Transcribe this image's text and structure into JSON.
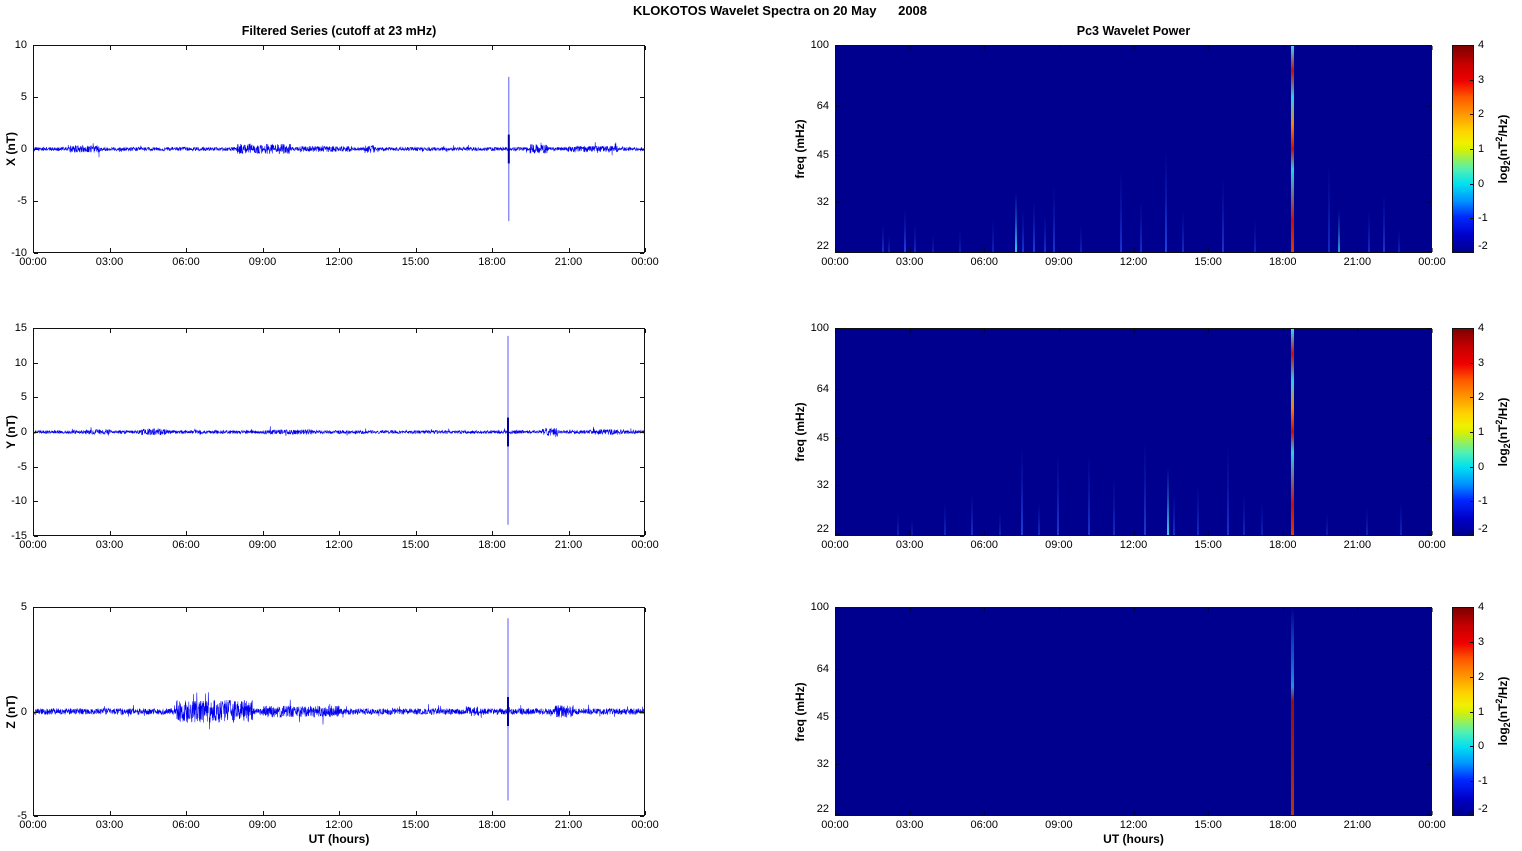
{
  "figure_title": "KLOKOTOS Wavelet Spectra on 20 May      2008",
  "left_column_title": "Filtered Series (cutoff at 23 mHz)",
  "right_column_title": "Pc3 Wavelet Power",
  "xlabel": "UT (hours)",
  "series_color": "#0000ee",
  "spectrogram_bg": "#00008f",
  "x_axis": {
    "range_hours": [
      0,
      24
    ],
    "tick_hours": [
      0,
      3,
      6,
      9,
      12,
      15,
      18,
      21,
      24
    ],
    "tick_labels": [
      "00:00",
      "03:00",
      "06:00",
      "09:00",
      "12:00",
      "15:00",
      "18:00",
      "21:00",
      "00:00"
    ]
  },
  "colorbar": {
    "tick_labels": [
      "4",
      "3",
      "2",
      "1",
      "0",
      "-1",
      "-2"
    ],
    "value_range": [
      -2,
      4
    ],
    "label_parts": {
      "prefix": "log",
      "sub": "2",
      "mid": "(nT",
      "sup": "2",
      "suffix": "/Hz)"
    },
    "gradient_top_to_bottom": [
      [
        0,
        "#7f0000"
      ],
      [
        0.09,
        "#c80000"
      ],
      [
        0.167,
        "#f00000"
      ],
      [
        0.25,
        "#ff5a00"
      ],
      [
        0.333,
        "#ff9600"
      ],
      [
        0.41,
        "#ffd200"
      ],
      [
        0.47,
        "#f0f000"
      ],
      [
        0.5,
        "#d8f000"
      ],
      [
        0.6,
        "#50f0b4"
      ],
      [
        0.667,
        "#00e0f0"
      ],
      [
        0.75,
        "#0096ff"
      ],
      [
        0.833,
        "#0028ff"
      ],
      [
        0.92,
        "#0000c8"
      ],
      [
        1,
        "#00008f"
      ]
    ]
  },
  "main_streak_gradient_bottom_to_top": [
    [
      0,
      "#d24000"
    ],
    [
      0.15,
      "#cc0f00"
    ],
    [
      0.4,
      "#28cfe6"
    ],
    [
      0.5,
      "#cc0f00"
    ],
    [
      0.62,
      "#ef8800"
    ],
    [
      0.75,
      "#28cfe6"
    ],
    [
      0.88,
      "#cc0f00"
    ],
    [
      1,
      "#35d8ee"
    ]
  ],
  "main_streak_z_gradient_bottom_to_top": [
    [
      0,
      "#c83c00"
    ],
    [
      0.45,
      "#b41400"
    ],
    [
      0.55,
      "#aa1000"
    ],
    [
      0.62,
      "#2f9fe0"
    ],
    [
      0.72,
      "#1870d8"
    ],
    [
      0.85,
      "#1040c0"
    ],
    [
      1,
      "#00008f"
    ]
  ],
  "chart_data": [
    {
      "type": "line",
      "position": "left-top",
      "name": "X filtered series",
      "ylabel": "X (nT)",
      "ylim": [
        -10,
        10
      ],
      "yticks": [
        10,
        5,
        0,
        -5,
        -10
      ],
      "x_range_hours": [
        0,
        24
      ],
      "noise_base_nT": 0.18,
      "noise_bursts": [
        {
          "t0": 1.4,
          "t1": 2.6,
          "amp": 0.35
        },
        {
          "t0": 8.0,
          "t1": 10.1,
          "amp": 0.5
        },
        {
          "t0": 10.5,
          "t1": 12.5,
          "amp": 0.3
        },
        {
          "t0": 13.0,
          "t1": 13.4,
          "amp": 0.4
        },
        {
          "t0": 19.5,
          "t1": 20.2,
          "amp": 0.45
        },
        {
          "t0": 21.0,
          "t1": 23.0,
          "amp": 0.3
        }
      ],
      "spikes": [
        {
          "t": 18.68,
          "up": 7,
          "down": -7
        }
      ]
    },
    {
      "type": "line",
      "position": "left-middle",
      "name": "Y filtered series",
      "ylabel": "Y (nT)",
      "ylim": [
        -15,
        15
      ],
      "yticks": [
        15,
        10,
        5,
        0,
        -5,
        -10,
        -15
      ],
      "x_range_hours": [
        0,
        24
      ],
      "noise_base_nT": 0.25,
      "noise_bursts": [
        {
          "t0": 2.0,
          "t1": 3.0,
          "amp": 0.4
        },
        {
          "t0": 4.2,
          "t1": 5.2,
          "amp": 0.45
        },
        {
          "t0": 9.0,
          "t1": 11.0,
          "amp": 0.35
        },
        {
          "t0": 20.0,
          "t1": 20.6,
          "amp": 0.6
        },
        {
          "t0": 22.0,
          "t1": 23.2,
          "amp": 0.4
        }
      ],
      "spikes": [
        {
          "t": 18.65,
          "up": 14,
          "down": -13.5
        }
      ]
    },
    {
      "type": "line",
      "position": "left-bottom",
      "name": "Z filtered series",
      "ylabel": "Z (nT)",
      "ylim": [
        -5,
        5
      ],
      "yticks": [
        5,
        0,
        -5
      ],
      "x_range_hours": [
        0,
        24
      ],
      "noise_base_nT": 0.15,
      "noise_bursts": [
        {
          "t0": 5.6,
          "t1": 8.6,
          "amp": 0.55
        },
        {
          "t0": 9.0,
          "t1": 12.0,
          "amp": 0.28
        },
        {
          "t0": 17.0,
          "t1": 17.5,
          "amp": 0.25
        },
        {
          "t0": 20.5,
          "t1": 21.2,
          "amp": 0.3
        }
      ],
      "spikes": [
        {
          "t": 18.65,
          "up": 4.5,
          "down": -4.3
        }
      ]
    },
    {
      "type": "heatmap",
      "position": "right-top",
      "name": "X wavelet power",
      "ylabel": "freq (mHz)",
      "yscale": "log",
      "ylim_mHz": [
        22,
        100
      ],
      "yticks": [
        100,
        64,
        45,
        32,
        22
      ],
      "value_label": "log2(nT^2/Hz)",
      "value_range": [
        -2,
        4
      ],
      "background_value": -2,
      "streaks": [
        {
          "t": 1.9,
          "fmax": 27,
          "c": "#2e5cff",
          "o": 0.5
        },
        {
          "t": 2.15,
          "fmax": 25,
          "c": "#2e5cff",
          "o": 0.35
        },
        {
          "t": 2.8,
          "fmax": 30,
          "c": "#2e5cff",
          "o": 0.7
        },
        {
          "t": 3.2,
          "fmax": 27,
          "c": "#2e5cff",
          "o": 0.45
        },
        {
          "t": 3.9,
          "fmax": 25,
          "c": "#2e5cff",
          "o": 0.3
        },
        {
          "t": 5.0,
          "fmax": 26,
          "c": "#2e5cff",
          "o": 0.3
        },
        {
          "t": 6.35,
          "fmax": 28,
          "c": "#2e5cff",
          "o": 0.35
        },
        {
          "t": 7.25,
          "fmax": 34,
          "c": "#35d2f0",
          "o": 0.95
        },
        {
          "t": 7.55,
          "fmax": 30,
          "c": "#2e5cff",
          "o": 0.55
        },
        {
          "t": 8.0,
          "fmax": 32,
          "c": "#2e5cff",
          "o": 0.65
        },
        {
          "t": 8.45,
          "fmax": 29,
          "c": "#2e5cff",
          "o": 0.5
        },
        {
          "t": 8.8,
          "fmax": 36,
          "c": "#2e5cff",
          "o": 0.55
        },
        {
          "t": 9.9,
          "fmax": 27,
          "c": "#2e5cff",
          "o": 0.35
        },
        {
          "t": 11.5,
          "fmax": 40,
          "c": "#2e5cff",
          "o": 0.55
        },
        {
          "t": 12.3,
          "fmax": 32,
          "c": "#2e5cff",
          "o": 0.5
        },
        {
          "t": 13.3,
          "fmax": 46,
          "c": "#2e5cff",
          "o": 0.7
        },
        {
          "t": 14.0,
          "fmax": 30,
          "c": "#2e5cff",
          "o": 0.45
        },
        {
          "t": 15.6,
          "fmax": 38,
          "c": "#2e5cff",
          "o": 0.55
        },
        {
          "t": 16.9,
          "fmax": 28,
          "c": "#2e5cff",
          "o": 0.35
        },
        {
          "t": 18.4,
          "fmax": 100,
          "main": true
        },
        {
          "t": 19.9,
          "fmax": 42,
          "c": "#2e5cff",
          "o": 0.45
        },
        {
          "t": 20.3,
          "fmax": 30,
          "c": "#35d2f0",
          "o": 0.75
        },
        {
          "t": 21.5,
          "fmax": 30,
          "c": "#2e5cff",
          "o": 0.45
        },
        {
          "t": 22.1,
          "fmax": 34,
          "c": "#2e5cff",
          "o": 0.55
        },
        {
          "t": 22.7,
          "fmax": 26,
          "c": "#2e5cff",
          "o": 0.35
        }
      ]
    },
    {
      "type": "heatmap",
      "position": "right-middle",
      "name": "Y wavelet power",
      "ylabel": "freq (mHz)",
      "yscale": "log",
      "ylim_mHz": [
        22,
        100
      ],
      "yticks": [
        100,
        64,
        45,
        32,
        22
      ],
      "value_label": "log2(nT^2/Hz)",
      "value_range": [
        -2,
        4
      ],
      "background_value": -2,
      "streaks": [
        {
          "t": 2.5,
          "fmax": 26,
          "c": "#2e5cff",
          "o": 0.35
        },
        {
          "t": 3.05,
          "fmax": 25,
          "c": "#2e5cff",
          "o": 0.3
        },
        {
          "t": 4.4,
          "fmax": 28,
          "c": "#2e5cff",
          "o": 0.4
        },
        {
          "t": 5.5,
          "fmax": 30,
          "c": "#2e5cff",
          "o": 0.5
        },
        {
          "t": 6.6,
          "fmax": 26,
          "c": "#2e5cff",
          "o": 0.35
        },
        {
          "t": 7.5,
          "fmax": 42,
          "c": "#2e5cff",
          "o": 0.65
        },
        {
          "t": 8.2,
          "fmax": 28,
          "c": "#2e5cff",
          "o": 0.45
        },
        {
          "t": 8.95,
          "fmax": 40,
          "c": "#2e5cff",
          "o": 0.6
        },
        {
          "t": 10.2,
          "fmax": 40,
          "c": "#2e5cff",
          "o": 0.55
        },
        {
          "t": 11.2,
          "fmax": 34,
          "c": "#2e5cff",
          "o": 0.45
        },
        {
          "t": 12.45,
          "fmax": 44,
          "c": "#2e5cff",
          "o": 0.6
        },
        {
          "t": 13.4,
          "fmax": 36,
          "c": "#45d6f0",
          "o": 0.95
        },
        {
          "t": 13.65,
          "fmax": 30,
          "c": "#2e5cff",
          "o": 0.5
        },
        {
          "t": 14.6,
          "fmax": 32,
          "c": "#2e5cff",
          "o": 0.45
        },
        {
          "t": 15.8,
          "fmax": 42,
          "c": "#2e5cff",
          "o": 0.55
        },
        {
          "t": 16.45,
          "fmax": 30,
          "c": "#2e5cff",
          "o": 0.4
        },
        {
          "t": 17.2,
          "fmax": 28,
          "c": "#2e5cff",
          "o": 0.35
        },
        {
          "t": 18.4,
          "fmax": 100,
          "main": true
        },
        {
          "t": 19.8,
          "fmax": 26,
          "c": "#2e5cff",
          "o": 0.3
        },
        {
          "t": 21.4,
          "fmax": 27,
          "c": "#2e5cff",
          "o": 0.35
        },
        {
          "t": 22.8,
          "fmax": 28,
          "c": "#2e5cff",
          "o": 0.4
        }
      ]
    },
    {
      "type": "heatmap",
      "position": "right-bottom",
      "name": "Z wavelet power",
      "ylabel": "freq (mHz)",
      "yscale": "log",
      "ylim_mHz": [
        22,
        100
      ],
      "yticks": [
        100,
        64,
        45,
        32,
        22
      ],
      "value_label": "log2(nT^2/Hz)",
      "value_range": [
        -2,
        4
      ],
      "background_value": -2,
      "streaks": [
        {
          "t": 18.4,
          "fmax": 100,
          "main": true,
          "variant": "z"
        }
      ]
    }
  ]
}
